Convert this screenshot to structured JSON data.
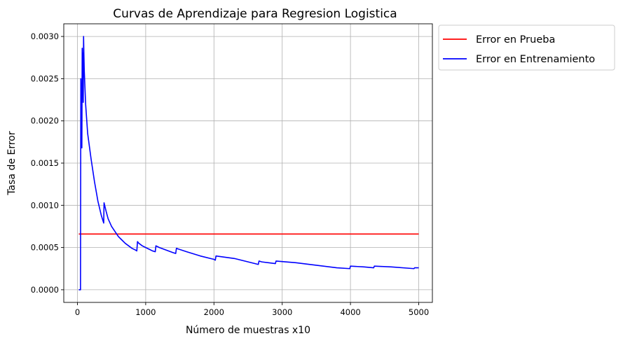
{
  "chart_data": {
    "type": "line",
    "title": "Curvas de Aprendizaje para Regresion Logistica",
    "xlabel": "Número de muestras x10",
    "ylabel": "Tasa de Error",
    "xlim": [
      -200,
      5200
    ],
    "ylim": [
      -0.00015,
      0.00315
    ],
    "x_ticks": [
      0,
      1000,
      2000,
      3000,
      4000,
      5000
    ],
    "x_tick_labels": [
      "0",
      "1000",
      "2000",
      "3000",
      "4000",
      "5000"
    ],
    "y_ticks": [
      0.0,
      0.0005,
      0.001,
      0.0015,
      0.002,
      0.0025,
      0.003
    ],
    "y_tick_labels": [
      "0.0000",
      "0.0005",
      "0.0010",
      "0.0015",
      "0.0020",
      "0.0025",
      "0.0030"
    ],
    "grid": true,
    "legend_position": "outside-top-right",
    "series": [
      {
        "name": "Error en Prueba",
        "color": "#ff0000",
        "x": [
          20,
          5000
        ],
        "y": [
          0.00066,
          0.00066
        ]
      },
      {
        "name": "Error en Entrenamiento",
        "color": "#0000ff",
        "x": [
          20,
          45,
          50,
          55,
          60,
          65,
          70,
          75,
          80,
          85,
          90,
          95,
          100,
          120,
          150,
          200,
          250,
          300,
          350,
          385,
          390,
          420,
          450,
          500,
          550,
          600,
          650,
          700,
          750,
          800,
          850,
          870,
          880,
          900,
          950,
          1000,
          1050,
          1100,
          1140,
          1150,
          1200,
          1300,
          1400,
          1440,
          1450,
          1600,
          1800,
          2000,
          2020,
          2030,
          2300,
          2650,
          2660,
          2700,
          2900,
          2910,
          3200,
          3500,
          3800,
          3990,
          4000,
          4200,
          4340,
          4350,
          4600,
          4930,
          4940,
          5000
        ],
        "y": [
          0.0,
          0.0,
          0.0025,
          0.0023,
          0.0021,
          0.00168,
          0.00286,
          0.0026,
          0.0028,
          0.00222,
          0.003,
          0.00278,
          0.0026,
          0.0022,
          0.00185,
          0.00155,
          0.00128,
          0.00105,
          0.00088,
          0.00079,
          0.00103,
          0.00093,
          0.00084,
          0.00075,
          0.00069,
          0.00063,
          0.00059,
          0.00055,
          0.00052,
          0.00049,
          0.00047,
          0.00046,
          0.00057,
          0.00055,
          0.00052,
          0.0005,
          0.00048,
          0.00046,
          0.00045,
          0.00052,
          0.0005,
          0.00047,
          0.00044,
          0.00043,
          0.00049,
          0.00045,
          0.0004,
          0.00036,
          0.00035,
          0.0004,
          0.00037,
          0.0003,
          0.00034,
          0.00033,
          0.00031,
          0.00034,
          0.00032,
          0.00029,
          0.00026,
          0.00025,
          0.00028,
          0.00027,
          0.00026,
          0.00028,
          0.00027,
          0.00025,
          0.00026,
          0.00026
        ]
      }
    ]
  }
}
